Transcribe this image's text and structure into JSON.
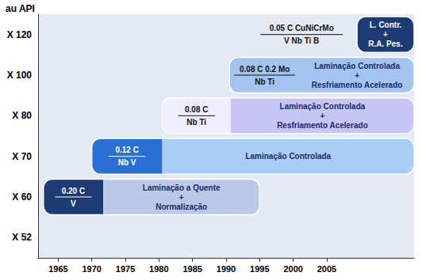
{
  "chart_data": {
    "type": "timeline",
    "y_label": "au API",
    "categories": [
      "X 52",
      "X 60",
      "X 70",
      "X 80",
      "X 100",
      "X 120"
    ],
    "xlim": [
      1962,
      2018
    ],
    "xticks": [
      1965,
      1970,
      1975,
      1980,
      1985,
      1990,
      1995,
      2000,
      2005
    ],
    "grid": false,
    "bars": [
      {
        "grade": "X 60",
        "start": 1962.8,
        "split": 1971.7,
        "end": 1995,
        "composition": [
          "0.20 C",
          "V"
        ],
        "process": [
          "Laminação a Quente",
          "+",
          "Normalização"
        ],
        "composition_color": "#1d3b73",
        "color": "#b9c9e6"
      },
      {
        "grade": "X 70",
        "start": 1970,
        "split": 1980.5,
        "end": 2018,
        "composition": [
          "0.12 C",
          "Nb V"
        ],
        "process": [
          "Laminação Controlada"
        ],
        "composition_color": "#2a6fd1",
        "color": "#a9cdf5"
      },
      {
        "grade": "X 80",
        "start": 1980.5,
        "split": 1990.7,
        "end": 2018,
        "composition": [
          "0.08 C",
          "Nb Ti"
        ],
        "process": [
          "Laminação Controlada",
          "+",
          "Resfriamento Acelerado"
        ],
        "composition_color": "#eeeeff",
        "color": "#c7c5f5"
      },
      {
        "grade": "X 100",
        "start": 1990.5,
        "split": 2001,
        "end": 2018,
        "composition": [
          "0.08 C 0.2 Mo",
          "Nb Ti"
        ],
        "process": [
          "Laminação Controlada",
          "+",
          "Resfriamento Acelerado"
        ],
        "composition_color": "#a3c4ee",
        "color": "#a3c4ee"
      },
      {
        "grade": "X 120",
        "start": 1993,
        "split": 2009.5,
        "end": 2018,
        "composition": [
          "0.05 C CuNiCrMo",
          "V Nb Ti B"
        ],
        "process": [
          "L. Contr.",
          "+",
          "R.A. Pes."
        ],
        "composition_color": null,
        "color": "#1d3b73"
      }
    ]
  }
}
